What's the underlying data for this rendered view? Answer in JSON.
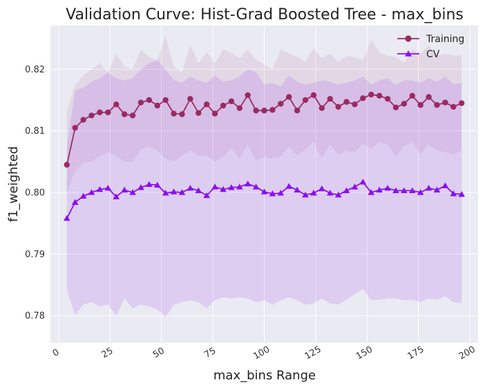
{
  "chart_data": {
    "type": "line",
    "title": "Validation Curve: Hist-Grad Boosted Tree - max_bins",
    "xlabel": "max_bins Range",
    "ylabel": "f1_weighted",
    "xlim": [
      -4,
      204
    ],
    "ylim": [
      0.7756,
      0.8271
    ],
    "x_ticks": [
      0,
      25,
      50,
      75,
      100,
      125,
      150,
      175,
      200
    ],
    "y_ticks": [
      0.78,
      0.79,
      0.8,
      0.81,
      0.82
    ],
    "y_tick_labels": [
      "0.78",
      "0.79",
      "0.80",
      "0.81",
      "0.82"
    ],
    "x_tick_rotation": -30,
    "grid": true,
    "legend_position": "top-right",
    "x": [
      4,
      8,
      12,
      16,
      20,
      24,
      28,
      32,
      36,
      40,
      44,
      48,
      52,
      56,
      60,
      64,
      68,
      72,
      76,
      80,
      84,
      88,
      92,
      96,
      100,
      104,
      108,
      112,
      116,
      120,
      124,
      128,
      132,
      136,
      140,
      144,
      148,
      152,
      156,
      160,
      164,
      168,
      172,
      176,
      180,
      184,
      188,
      192,
      196
    ],
    "series": [
      {
        "name": "Training",
        "color": "#9a2a62",
        "marker": "circle",
        "values": [
          0.8045,
          0.8105,
          0.8118,
          0.8125,
          0.813,
          0.813,
          0.8143,
          0.8127,
          0.8125,
          0.8146,
          0.815,
          0.8141,
          0.815,
          0.8128,
          0.8127,
          0.8152,
          0.8129,
          0.8143,
          0.8128,
          0.8141,
          0.8148,
          0.8137,
          0.8158,
          0.8133,
          0.8133,
          0.8134,
          0.8144,
          0.8155,
          0.8133,
          0.815,
          0.8158,
          0.8137,
          0.8152,
          0.8139,
          0.8147,
          0.8143,
          0.8153,
          0.8159,
          0.8157,
          0.8152,
          0.8138,
          0.8144,
          0.8157,
          0.8142,
          0.8155,
          0.8142,
          0.8146,
          0.8139,
          0.8145
        ],
        "band_upper": [
          0.8132,
          0.8175,
          0.819,
          0.82,
          0.821,
          0.8195,
          0.8225,
          0.8205,
          0.82,
          0.8232,
          0.822,
          0.8215,
          0.8255,
          0.8205,
          0.8195,
          0.824,
          0.821,
          0.8228,
          0.821,
          0.8232,
          0.8226,
          0.8218,
          0.8232,
          0.8215,
          0.8208,
          0.82,
          0.8232,
          0.8226,
          0.822,
          0.8212,
          0.8235,
          0.8218,
          0.8226,
          0.8212,
          0.8222,
          0.822,
          0.8215,
          0.8248,
          0.8228,
          0.8222,
          0.822,
          0.821,
          0.8232,
          0.8225,
          0.8238,
          0.8222,
          0.8225,
          0.8222,
          0.8223
        ],
        "band_lower": [
          0.7998,
          0.8035,
          0.8048,
          0.805,
          0.806,
          0.8065,
          0.806,
          0.805,
          0.805,
          0.807,
          0.8075,
          0.8068,
          0.8055,
          0.805,
          0.806,
          0.8068,
          0.806,
          0.806,
          0.805,
          0.8058,
          0.8072,
          0.8055,
          0.8078,
          0.8052,
          0.8058,
          0.8055,
          0.8058,
          0.8075,
          0.806,
          0.807,
          0.8082,
          0.8055,
          0.8078,
          0.8062,
          0.8068,
          0.8065,
          0.808,
          0.807,
          0.8082,
          0.8078,
          0.8058,
          0.8075,
          0.8082,
          0.8062,
          0.8078,
          0.8068,
          0.8065,
          0.8062,
          0.8068
        ]
      },
      {
        "name": "CV",
        "color": "#8a0ff0",
        "marker": "triangle",
        "values": [
          0.7958,
          0.7984,
          0.7994,
          0.8,
          0.8005,
          0.8007,
          0.7993,
          0.8004,
          0.8,
          0.8008,
          0.8013,
          0.8012,
          0.7999,
          0.8001,
          0.8,
          0.8007,
          0.8003,
          0.7995,
          0.8009,
          0.8005,
          0.8008,
          0.8009,
          0.8014,
          0.8009,
          0.8001,
          0.7998,
          0.7999,
          0.801,
          0.8004,
          0.7996,
          0.7999,
          0.8006,
          0.7999,
          0.7996,
          0.8003,
          0.8009,
          0.8017,
          0.8,
          0.8004,
          0.8007,
          0.8003,
          0.8003,
          0.8003,
          0.8,
          0.8007,
          0.8004,
          0.8011,
          0.7998,
          0.7997
        ],
        "band_upper": [
          0.8075,
          0.8165,
          0.817,
          0.818,
          0.8185,
          0.8195,
          0.8185,
          0.8182,
          0.8185,
          0.82,
          0.821,
          0.8215,
          0.82,
          0.8182,
          0.8178,
          0.8188,
          0.8182,
          0.8178,
          0.819,
          0.818,
          0.8182,
          0.8188,
          0.82,
          0.8195,
          0.8175,
          0.8178,
          0.8172,
          0.819,
          0.818,
          0.8175,
          0.8178,
          0.8182,
          0.818,
          0.8175,
          0.8178,
          0.8182,
          0.8188,
          0.8175,
          0.8182,
          0.8185,
          0.8175,
          0.8182,
          0.8182,
          0.8178,
          0.8185,
          0.818,
          0.8188,
          0.8176,
          0.8178
        ],
        "band_lower": [
          0.7842,
          0.7801,
          0.7818,
          0.7822,
          0.7815,
          0.7818,
          0.78,
          0.7828,
          0.7812,
          0.7818,
          0.7815,
          0.781,
          0.7798,
          0.7818,
          0.7822,
          0.7825,
          0.7822,
          0.7812,
          0.7825,
          0.783,
          0.7828,
          0.783,
          0.7828,
          0.7822,
          0.7825,
          0.7818,
          0.7825,
          0.783,
          0.7825,
          0.7818,
          0.782,
          0.7828,
          0.782,
          0.7818,
          0.7826,
          0.7835,
          0.7843,
          0.7825,
          0.7826,
          0.7828,
          0.7828,
          0.7825,
          0.7826,
          0.7822,
          0.7828,
          0.7826,
          0.7832,
          0.7822,
          0.782
        ]
      }
    ]
  }
}
